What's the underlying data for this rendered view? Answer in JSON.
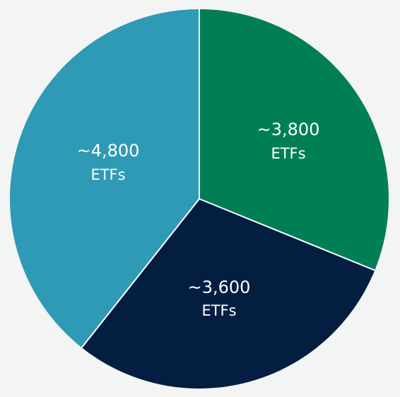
{
  "chart_data": {
    "type": "pie",
    "title": "",
    "slices": [
      {
        "value": 3800,
        "label": "~3,800",
        "unit": "ETFs",
        "color": "#007f57"
      },
      {
        "value": 3600,
        "label": "~3,600",
        "unit": "ETFs",
        "color": "#041e42"
      },
      {
        "value": 4800,
        "label": "~4,800",
        "unit": "ETFs",
        "color": "#2e9ab5"
      }
    ],
    "separator_color": "#ffffff",
    "background": "#f3f4f4"
  }
}
